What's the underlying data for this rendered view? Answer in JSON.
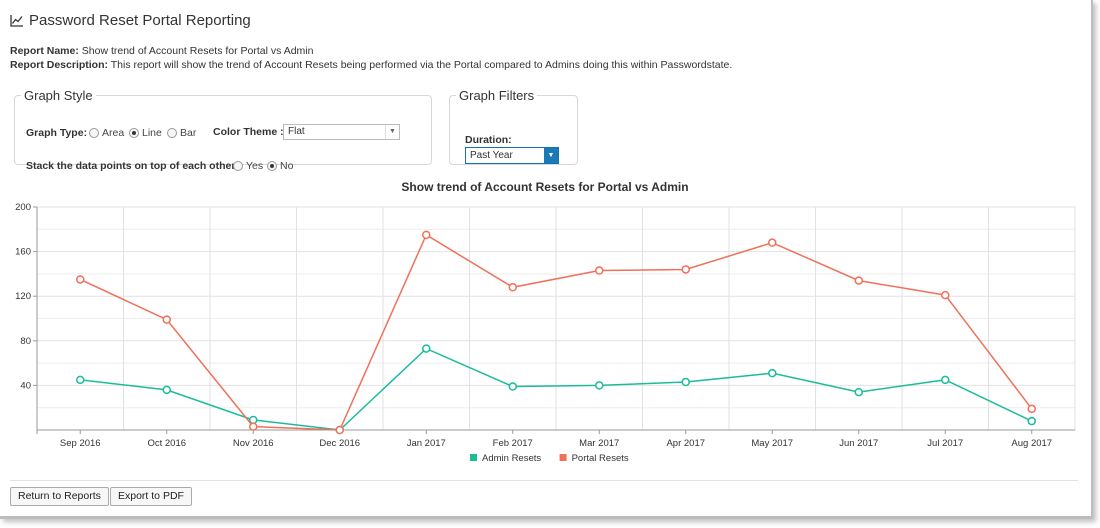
{
  "page": {
    "title": "Password Reset Portal Reporting",
    "report_name_label": "Report Name:",
    "report_name": "Show trend of Account Resets for Portal vs Admin",
    "report_desc_label": "Report Description:",
    "report_desc": "This report will show the trend of Account Resets being performed via the Portal compared to Admins doing this within Passwordstate."
  },
  "graph_style": {
    "legend": "Graph Style",
    "type_label": "Graph Type:",
    "types": [
      "Area",
      "Line",
      "Bar"
    ],
    "selected_type": "Line",
    "color_theme_label": "Color Theme :",
    "color_theme_value": "Flat",
    "stack_label": "Stack the data points on top of each other:",
    "stack_yes": "Yes",
    "stack_no": "No",
    "stack_selected": "No"
  },
  "graph_filters": {
    "legend": "Graph Filters",
    "duration_label": "Duration:",
    "duration_value": "Past Year"
  },
  "buttons": {
    "return": "Return to Reports",
    "export": "Export to PDF"
  },
  "icons": {
    "title_icon": "line-chart-icon",
    "dropdown_icon": "triangle-down-icon"
  },
  "chart_data": {
    "type": "line",
    "title": "Show trend of Account Resets for Portal vs Admin",
    "categories": [
      "Sep 2016",
      "Oct 2016",
      "Nov 2016",
      "Dec 2016",
      "Jan 2017",
      "Feb 2017",
      "Mar 2017",
      "Apr 2017",
      "May 2017",
      "Jun 2017",
      "Jul 2017",
      "Aug 2017"
    ],
    "series": [
      {
        "name": "Admin Resets",
        "color": "#1abc9c",
        "values": [
          45,
          36,
          9,
          0,
          73,
          39,
          40,
          43,
          51,
          34,
          45,
          8
        ]
      },
      {
        "name": "Portal Resets",
        "color": "#f0705a",
        "values": [
          135,
          99,
          3,
          0,
          175,
          128,
          143,
          144,
          168,
          134,
          121,
          19
        ]
      }
    ],
    "ylim": [
      0,
      200
    ],
    "yticks": [
      40,
      80,
      120,
      160,
      200
    ],
    "grid": true,
    "legend_position": "bottom"
  }
}
